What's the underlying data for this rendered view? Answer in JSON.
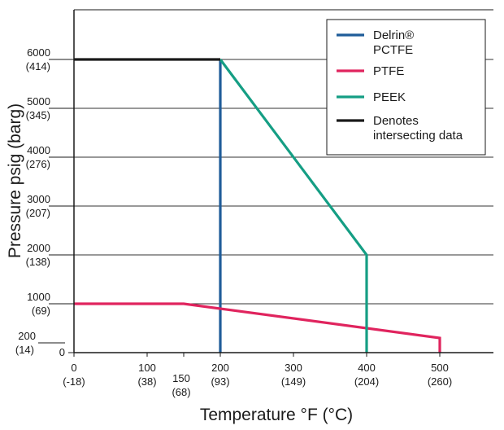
{
  "chart_data": {
    "type": "line",
    "xlabel": "Temperature °F (°C)",
    "ylabel": "Pressure psig (barg)",
    "xlim": [
      0,
      600
    ],
    "ylim": [
      0,
      7000
    ],
    "grid": "horizontal",
    "legend_position": "top-right",
    "x_ticks": [
      {
        "value": 0,
        "label": "0",
        "sublabel": "(-18)"
      },
      {
        "value": 100,
        "label": "100",
        "sublabel": "(38)"
      },
      {
        "value": 150,
        "label": "150",
        "sublabel": "(68)"
      },
      {
        "value": 200,
        "label": "200",
        "sublabel": "(93)"
      },
      {
        "value": 300,
        "label": "300",
        "sublabel": "(149)"
      },
      {
        "value": 400,
        "label": "400",
        "sublabel": "(204)"
      },
      {
        "value": 500,
        "label": "500",
        "sublabel": "(260)"
      }
    ],
    "y_ticks": [
      {
        "value": 0,
        "label": "0",
        "sublabel": ""
      },
      {
        "value": 200,
        "label": "200",
        "sublabel": "(14)"
      },
      {
        "value": 1000,
        "label": "1000",
        "sublabel": "(69)"
      },
      {
        "value": 2000,
        "label": "2000",
        "sublabel": "(138)"
      },
      {
        "value": 3000,
        "label": "3000",
        "sublabel": "(207)"
      },
      {
        "value": 4000,
        "label": "4000",
        "sublabel": "(276)"
      },
      {
        "value": 5000,
        "label": "5000",
        "sublabel": "(345)"
      },
      {
        "value": 6000,
        "label": "6000",
        "sublabel": "(414)"
      }
    ],
    "series": [
      {
        "name": "Delrin® PCTFE",
        "color": "#1f5c99",
        "x": [
          200,
          200
        ],
        "y": [
          0,
          6000
        ]
      },
      {
        "name": "PTFE",
        "color": "#e0245e",
        "x": [
          0,
          150,
          500,
          500
        ],
        "y": [
          1000,
          1000,
          300,
          0
        ]
      },
      {
        "name": "PEEK",
        "color": "#159e84",
        "x": [
          200,
          400,
          400
        ],
        "y": [
          6000,
          2000,
          0
        ]
      },
      {
        "name": "Denotes intersecting data",
        "color": "#1a1a1a",
        "x": [
          0,
          200
        ],
        "y": [
          6000,
          6000
        ]
      }
    ],
    "legend": [
      {
        "lines": [
          "Delrin®",
          "PCTFE"
        ],
        "color": "#1f5c99"
      },
      {
        "lines": [
          "PTFE"
        ],
        "color": "#e0245e"
      },
      {
        "lines": [
          "PEEK"
        ],
        "color": "#159e84"
      },
      {
        "lines": [
          "Denotes",
          "intersecting data"
        ],
        "color": "#1a1a1a"
      }
    ]
  }
}
